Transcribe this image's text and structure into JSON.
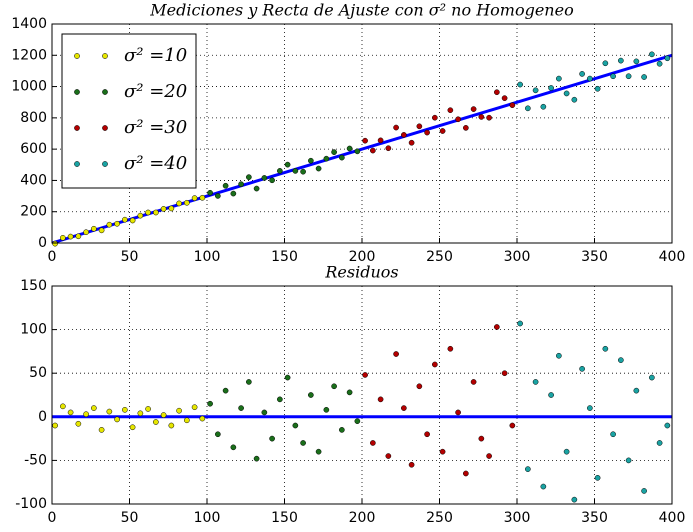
{
  "chart_data": [
    {
      "type": "scatter",
      "title": "Mediciones y Recta de Ajuste con σ² no Homogeneo",
      "xlim": [
        0,
        400
      ],
      "ylim": [
        0,
        1400
      ],
      "xticks": [
        0,
        50,
        100,
        150,
        200,
        250,
        300,
        350,
        400
      ],
      "yticks": [
        0,
        200,
        400,
        600,
        800,
        1000,
        1200,
        1400
      ],
      "grid": true,
      "legend": "upper left",
      "series": [
        {
          "name": "σ² =10",
          "color": "#e6e600",
          "x": [
            2,
            7,
            12,
            17,
            22,
            27,
            32,
            37,
            42,
            47,
            52,
            57,
            62,
            67,
            72,
            77,
            82,
            87,
            92,
            97
          ],
          "values": [
            -4,
            33,
            41,
            43,
            69,
            91,
            81,
            117,
            123,
            149,
            144,
            175,
            195,
            195,
            218,
            221,
            253,
            257,
            287,
            289
          ]
        },
        {
          "name": "σ² =20",
          "color": "#1a6e1a",
          "x": [
            102,
            107,
            112,
            117,
            122,
            127,
            132,
            137,
            142,
            147,
            152,
            157,
            162,
            167,
            172,
            177,
            182,
            187,
            192,
            197
          ],
          "values": [
            321,
            301,
            366,
            316,
            376,
            421,
            348,
            416,
            401,
            461,
            501,
            461,
            456,
            526,
            476,
            539,
            581,
            546,
            604,
            586
          ]
        },
        {
          "name": "σ² =30",
          "color": "#b30000",
          "x": [
            202,
            207,
            212,
            217,
            222,
            227,
            232,
            237,
            242,
            247,
            252,
            257,
            262,
            267,
            272,
            277,
            282,
            287,
            292,
            297
          ],
          "values": [
            654,
            591,
            656,
            606,
            738,
            691,
            641,
            746,
            706,
            801,
            716,
            849,
            791,
            736,
            856,
            806,
            801,
            964,
            926,
            881
          ]
        },
        {
          "name": "σ² =40",
          "color": "#1aa3a3",
          "x": [
            302,
            307,
            312,
            317,
            322,
            327,
            332,
            337,
            342,
            347,
            352,
            357,
            362,
            367,
            372,
            377,
            382,
            387,
            392,
            397
          ],
          "values": [
            1013,
            861,
            976,
            871,
            991,
            1051,
            956,
            916,
            1081,
            1051,
            986,
            1149,
            1066,
            1166,
            1066,
            1161,
            1061,
            1206,
            1146,
            1181
          ]
        }
      ],
      "line": {
        "color": "#0000ff",
        "x": [
          0,
          400
        ],
        "values": [
          0,
          1200
        ]
      }
    },
    {
      "type": "scatter",
      "title": "Residuos",
      "xlim": [
        0,
        400
      ],
      "ylim": [
        -100,
        150
      ],
      "xticks": [
        0,
        50,
        100,
        150,
        200,
        250,
        300,
        350,
        400
      ],
      "yticks": [
        -100,
        -50,
        0,
        50,
        100,
        150
      ],
      "grid": true,
      "series": [
        {
          "color": "#e6e600",
          "x": [
            2,
            7,
            12,
            17,
            22,
            27,
            32,
            37,
            42,
            47,
            52,
            57,
            62,
            67,
            72,
            77,
            82,
            87,
            92,
            97
          ],
          "values": [
            -10,
            12,
            5,
            -8,
            3,
            10,
            -15,
            6,
            -3,
            8,
            -12,
            4,
            9,
            -6,
            2,
            -10,
            7,
            -4,
            11,
            -2
          ]
        },
        {
          "color": "#1a6e1a",
          "x": [
            102,
            107,
            112,
            117,
            122,
            127,
            132,
            137,
            142,
            147,
            152,
            157,
            162,
            167,
            172,
            177,
            182,
            187,
            192,
            197
          ],
          "values": [
            15,
            -20,
            30,
            -35,
            10,
            40,
            -48,
            5,
            -25,
            20,
            45,
            -10,
            -30,
            25,
            -40,
            8,
            35,
            -15,
            28,
            -5
          ]
        },
        {
          "color": "#b30000",
          "x": [
            202,
            207,
            212,
            217,
            222,
            227,
            232,
            237,
            242,
            247,
            252,
            257,
            262,
            267,
            272,
            277,
            282,
            287,
            292,
            297
          ],
          "values": [
            48,
            -30,
            20,
            -45,
            72,
            10,
            -55,
            35,
            -20,
            60,
            -40,
            78,
            5,
            -65,
            40,
            -25,
            -45,
            103,
            50,
            -10
          ]
        },
        {
          "color": "#1aa3a3",
          "x": [
            302,
            307,
            312,
            317,
            322,
            327,
            332,
            337,
            342,
            347,
            352,
            357,
            362,
            367,
            372,
            377,
            382,
            387,
            392,
            397
          ],
          "values": [
            107,
            -60,
            40,
            -80,
            25,
            70,
            -40,
            -95,
            55,
            10,
            -70,
            78,
            -20,
            65,
            -50,
            30,
            -85,
            45,
            -30,
            -10
          ]
        }
      ],
      "line": {
        "color": "#0000ff",
        "x": [
          0,
          400
        ],
        "values": [
          0,
          0
        ]
      }
    }
  ]
}
